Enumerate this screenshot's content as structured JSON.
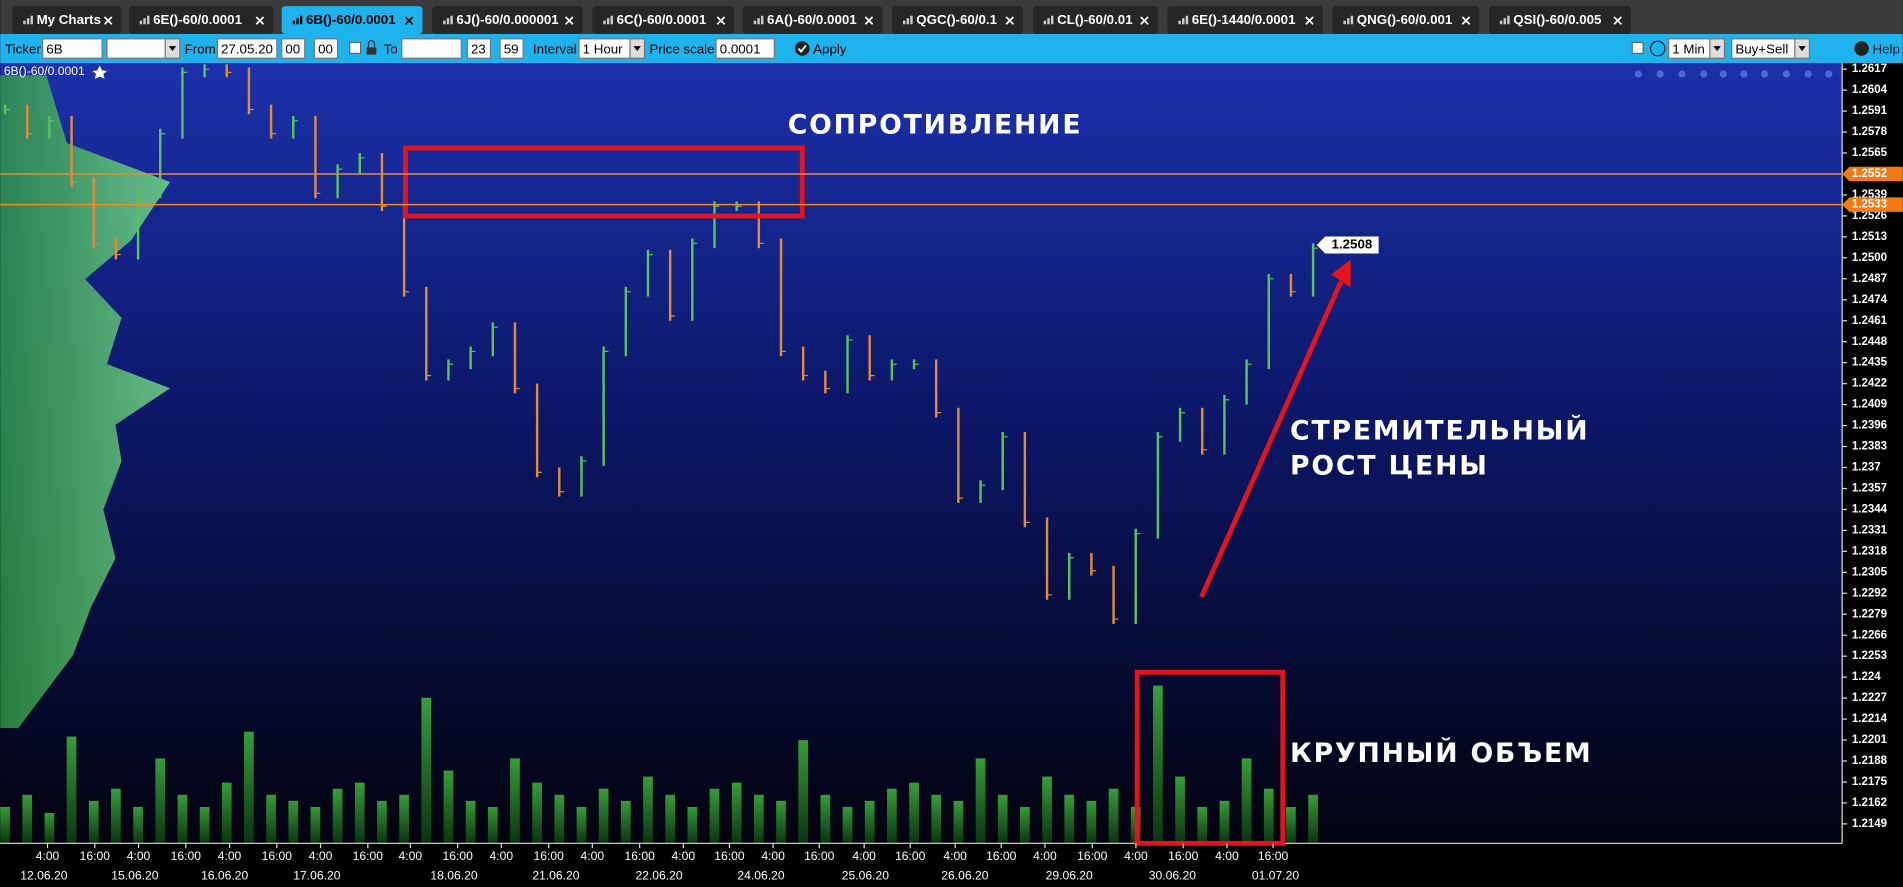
{
  "tabs": [
    "My Charts",
    "6E()-60/0.0001",
    "6B()-60/0.0001",
    "6J()-60/0.000001",
    "6C()-60/0.0001",
    "6A()-60/0.0001",
    "QGC()-60/0.1",
    "CL()-60/0.01",
    "6E()-1440/0.0001",
    "QNG()-60/0.001",
    "QSI()-60/0.005"
  ],
  "toolbar": {
    "ticker_label": "Ticker",
    "ticker": "6B",
    "from_label": "From",
    "from_date": "27.05.20",
    "from_h": "00",
    "from_m": "00",
    "to_label": "To",
    "to_h": "23",
    "to_m": "59",
    "interval_label": "Interval",
    "interval": "1 Hour",
    "price_scale_label": "Price scale",
    "price_scale": "0.0001",
    "apply": "Apply",
    "period": "1 Min",
    "side": "Buy+Sell",
    "help": "Help"
  },
  "chart": {
    "title": "6B()-60/0.0001",
    "ylim": [
      1.2149,
      1.2617
    ],
    "yticks": [
      1.2617,
      1.2604,
      1.2591,
      1.2578,
      1.2565,
      1.2552,
      1.2539,
      1.2526,
      1.2513,
      {
        "value": 1.25,
        "label": "1.2500"
      },
      1.2487,
      1.2474,
      1.2461,
      1.2448,
      1.2435,
      1.2422,
      1.2409,
      1.2396,
      1.2383,
      1.237,
      1.2357,
      1.2344,
      1.2331,
      1.2318,
      1.2305,
      1.2292,
      1.2279,
      1.2266,
      1.2253,
      1.224,
      1.2227,
      1.2214,
      1.2201,
      1.2188,
      1.2175,
      1.2162,
      1.2149
    ],
    "levels": [
      1.2552,
      1.2533
    ],
    "last_price": 1.2508,
    "price": [
      1.2592,
      1.2577,
      1.2585,
      1.2547,
      1.2509,
      1.2502,
      1.254,
      1.2577,
      1.2615,
      1.2617,
      1.2615,
      1.2592,
      1.2577,
      1.2585,
      1.254,
      1.2555,
      1.2562,
      1.2532,
      1.2479,
      1.2427,
      1.2434,
      1.2442,
      1.2457,
      1.2419,
      1.2367,
      1.2355,
      1.2374,
      1.2442,
      1.2479,
      1.2502,
      1.2464,
      1.2509,
      1.2532,
      1.2532,
      1.2509,
      1.2442,
      1.2427,
      1.2419,
      1.2449,
      1.2427,
      1.2434,
      1.2434,
      1.2404,
      1.2351,
      1.2359,
      1.2389,
      1.2336,
      1.2291,
      1.2314,
      1.2306,
      1.2276,
      1.2329,
      1.2389,
      1.2404,
      1.2381,
      1.2412,
      1.2434,
      1.2487,
      1.2479,
      1.2506
    ],
    "volume": [
      30,
      40,
      25,
      88,
      35,
      45,
      30,
      70,
      40,
      30,
      50,
      92,
      40,
      35,
      30,
      45,
      50,
      35,
      40,
      120,
      60,
      35,
      30,
      70,
      50,
      40,
      30,
      45,
      35,
      55,
      40,
      30,
      45,
      50,
      40,
      35,
      85,
      40,
      30,
      35,
      45,
      50,
      40,
      35,
      70,
      40,
      30,
      55,
      40,
      35,
      45,
      30,
      130,
      55,
      30,
      35,
      70,
      45,
      30,
      40
    ],
    "time_labels": [
      "4:00",
      "16:00",
      "4:00",
      "16:00",
      "4:00",
      "16:00",
      "4:00",
      "16:00",
      "4:00",
      "16:00",
      "4:00",
      "16:00",
      "4:00",
      "16:00",
      "4:00",
      "16:00",
      "4:00",
      "16:00",
      "4:00",
      "16:00",
      "4:00",
      "16:00",
      "4:00",
      "16:00",
      "4:00",
      "16:00",
      "4:00",
      "16:00"
    ],
    "date_labels": [
      "12.06.20",
      "15.06.20",
      "16.06.20",
      "17.06.20",
      "18.06.20",
      "21.06.20",
      "22.06.20",
      "24.06.20",
      "25.06.20",
      "26.06.20",
      "29.06.20",
      "30.06.20",
      "01.07.20"
    ],
    "annotations": {
      "resistance": "СОПРОТИВЛЕНИЕ",
      "rise": [
        "СТРЕМИТЕЛЬНЫЙ",
        "РОСТ ЦЕНЫ"
      ],
      "volume": "КРУПНЫЙ ОБЪЕМ"
    }
  }
}
